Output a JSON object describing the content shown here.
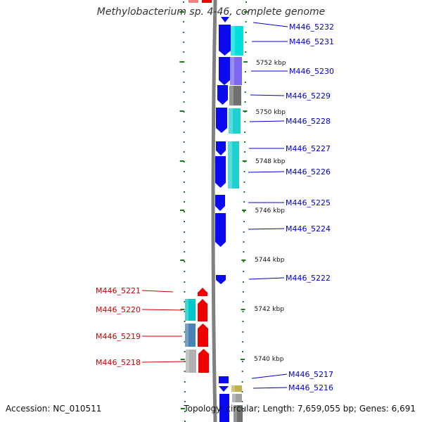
{
  "title": "Methylobacterium sp. 4-46, complete genome",
  "accession": "Accession: NC_010511",
  "summary": "Topology: circular; Length: 7,659,055 bp; Genes: 6,691",
  "colors": {
    "backbone": "#808080",
    "plus_label": "#0000cc",
    "minus_label": "#cc0000",
    "tick": "#1a7a1a"
  },
  "kbp_ticks": [
    "5752 kbp",
    "5750 kbp",
    "5748 kbp",
    "5746 kbp",
    "5744 kbp",
    "5742 kbp",
    "5740 kbp"
  ],
  "genes_plus": [
    "M446_5232",
    "M446_5231",
    "M446_5230",
    "M446_5229",
    "M446_5228",
    "M446_5227",
    "M446_5226",
    "M446_5225",
    "M446_5224",
    "M446_5222",
    "M446_5217",
    "M446_5216"
  ],
  "genes_minus": [
    "M446_5221",
    "M446_5220",
    "M446_5219",
    "M446_5218"
  ]
}
